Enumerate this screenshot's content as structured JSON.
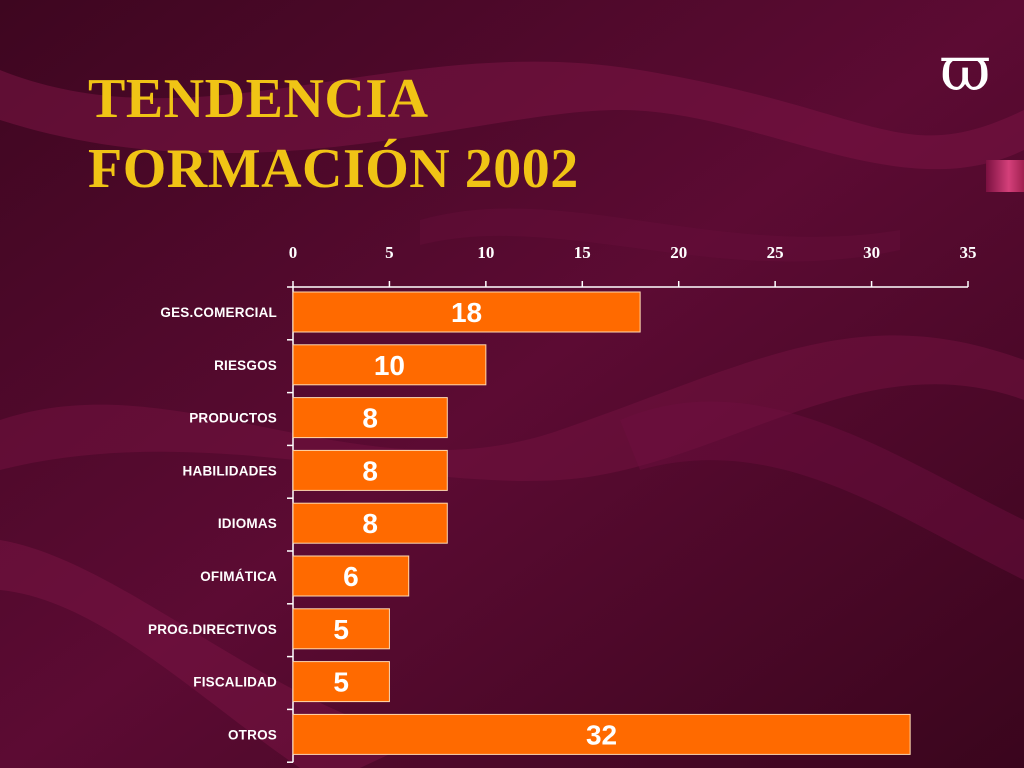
{
  "slide": {
    "title_line1": "TENDENCIA",
    "title_line2": "FORMACIÓN 2002",
    "logo_glyph": "ϖ"
  },
  "colors": {
    "background": "#5a0a30",
    "title": "#f0c415",
    "bar": "#ff6a00",
    "bar_border": "#ffd9b0",
    "axis": "#ffffff",
    "labels": "#ffffff"
  },
  "chart_data": {
    "type": "bar",
    "orientation": "horizontal",
    "title": "",
    "xlabel": "",
    "ylabel": "",
    "categories": [
      "GES.COMERCIAL",
      "RIESGOS",
      "PRODUCTOS",
      "HABILIDADES",
      "IDIOMAS",
      "OFIMÁTICA",
      "PROG.DIRECTIVOS",
      "FISCALIDAD",
      "OTROS"
    ],
    "values": [
      18,
      10,
      8,
      8,
      8,
      6,
      5,
      5,
      32
    ],
    "xlim": [
      0,
      35
    ],
    "xticks": [
      0,
      5,
      10,
      15,
      20,
      25,
      30,
      35
    ],
    "axis_position": "top",
    "grid": false,
    "legend": "none",
    "data_labels": true
  }
}
